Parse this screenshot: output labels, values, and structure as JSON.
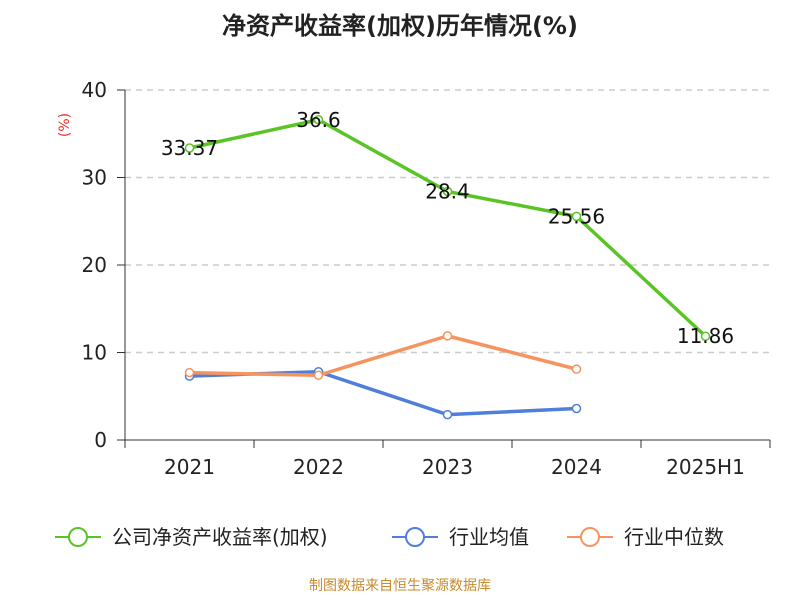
{
  "chart_data": {
    "type": "line",
    "title": "净资产收益率(加权)历年情况(%)",
    "ylabel": "(%)",
    "xlabel": "",
    "categories": [
      "2021",
      "2022",
      "2023",
      "2024",
      "2025H1"
    ],
    "ylim": [
      0,
      40
    ],
    "yticks": [
      0,
      10,
      20,
      30,
      40
    ],
    "grid": true,
    "legend_position": "bottom",
    "series": [
      {
        "name": "公司净资产收益率(加权)",
        "color": "#5ac427",
        "values": [
          33.37,
          36.6,
          28.4,
          25.56,
          11.86
        ],
        "labels": [
          "33.37",
          "36.6",
          "28.4",
          "25.56",
          "11.86"
        ]
      },
      {
        "name": "行业均值",
        "color": "#4f7fd8",
        "values": [
          7.3,
          7.8,
          2.9,
          3.6,
          null
        ]
      },
      {
        "name": "行业中位数",
        "color": "#f59460",
        "values": [
          7.7,
          7.4,
          11.9,
          8.1,
          null
        ]
      }
    ],
    "source": "制图数据来自恒生聚源数据库"
  },
  "colors": {
    "ylabel": "#e8312a",
    "source": "#c88a2c"
  }
}
